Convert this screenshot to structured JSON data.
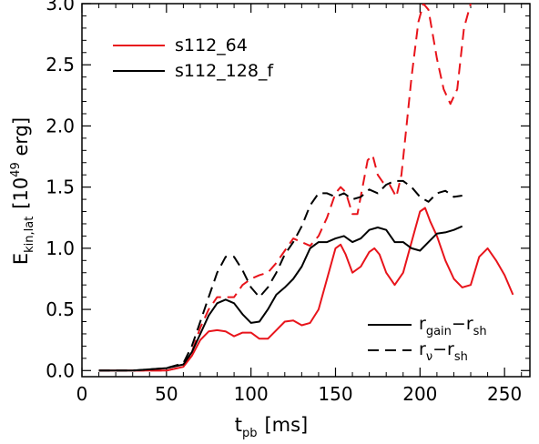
{
  "chart_data": {
    "type": "line",
    "xlabel": {
      "main": "t",
      "sub": "pb",
      "unit": "[ms]"
    },
    "ylabel": {
      "main": "E",
      "sub": "kin,lat",
      "unit_pre": "[10",
      "unit_exp": "49",
      "unit_post": " erg]"
    },
    "xlim": [
      0,
      265
    ],
    "ylim": [
      -0.05,
      3.0
    ],
    "x_ticks": [
      0,
      50,
      100,
      150,
      200,
      250
    ],
    "y_ticks": [
      0.0,
      0.5,
      1.0,
      1.5,
      2.0,
      2.5,
      3.0
    ],
    "x_tick_labels": [
      "0",
      "50",
      "100",
      "150",
      "200",
      "250"
    ],
    "y_tick_labels": [
      "0.0",
      "0.5",
      "1.0",
      "1.5",
      "2.0",
      "2.5",
      "3.0"
    ],
    "legend": {
      "placement": "top-left",
      "entries": [
        {
          "label": "s112_64",
          "color": "#e8141b"
        },
        {
          "label": "s112_128_f",
          "color": "#000000"
        }
      ]
    },
    "style_legend": {
      "placement": "bottom-right",
      "entries": [
        {
          "dash": "solid",
          "main1": "r",
          "sub1": "gain",
          "minus": "−",
          "main2": "r",
          "sub2": "sh"
        },
        {
          "dash": "dashed",
          "main1": "r",
          "sub1": "ν",
          "minus": "−",
          "main2": "r",
          "sub2": "sh"
        }
      ]
    },
    "series": [
      {
        "model": "s112_64",
        "color": "#e8141b",
        "dash": "dashed",
        "points": [
          [
            10,
            0.0
          ],
          [
            30,
            0.0
          ],
          [
            50,
            0.0
          ],
          [
            60,
            0.03
          ],
          [
            65,
            0.15
          ],
          [
            70,
            0.35
          ],
          [
            75,
            0.5
          ],
          [
            80,
            0.6
          ],
          [
            85,
            0.6
          ],
          [
            90,
            0.6
          ],
          [
            95,
            0.7
          ],
          [
            100,
            0.75
          ],
          [
            105,
            0.78
          ],
          [
            110,
            0.8
          ],
          [
            115,
            0.88
          ],
          [
            120,
            0.98
          ],
          [
            125,
            1.08
          ],
          [
            130,
            1.05
          ],
          [
            135,
            1.02
          ],
          [
            140,
            1.1
          ],
          [
            145,
            1.25
          ],
          [
            150,
            1.45
          ],
          [
            153,
            1.5
          ],
          [
            156,
            1.46
          ],
          [
            160,
            1.28
          ],
          [
            163,
            1.28
          ],
          [
            166,
            1.5
          ],
          [
            169,
            1.72
          ],
          [
            172,
            1.76
          ],
          [
            175,
            1.6
          ],
          [
            178,
            1.54
          ],
          [
            182,
            1.52
          ],
          [
            186,
            1.42
          ],
          [
            189,
            1.6
          ],
          [
            192,
            2.0
          ],
          [
            195,
            2.4
          ],
          [
            199,
            2.85
          ],
          [
            202,
            3.0
          ],
          [
            205,
            2.95
          ],
          [
            210,
            2.55
          ],
          [
            214,
            2.3
          ],
          [
            218,
            2.18
          ],
          [
            222,
            2.3
          ],
          [
            226,
            2.8
          ],
          [
            230,
            3.0
          ]
        ]
      },
      {
        "model": "s112_64",
        "color": "#e8141b",
        "dash": "solid",
        "points": [
          [
            10,
            0.0
          ],
          [
            30,
            0.0
          ],
          [
            50,
            0.0
          ],
          [
            60,
            0.03
          ],
          [
            65,
            0.12
          ],
          [
            70,
            0.25
          ],
          [
            75,
            0.32
          ],
          [
            80,
            0.33
          ],
          [
            85,
            0.32
          ],
          [
            90,
            0.28
          ],
          [
            95,
            0.31
          ],
          [
            100,
            0.31
          ],
          [
            105,
            0.26
          ],
          [
            110,
            0.26
          ],
          [
            115,
            0.33
          ],
          [
            120,
            0.4
          ],
          [
            125,
            0.41
          ],
          [
            130,
            0.37
          ],
          [
            135,
            0.39
          ],
          [
            140,
            0.5
          ],
          [
            145,
            0.75
          ],
          [
            150,
            1.0
          ],
          [
            153,
            1.03
          ],
          [
            156,
            0.95
          ],
          [
            160,
            0.8
          ],
          [
            165,
            0.85
          ],
          [
            170,
            0.97
          ],
          [
            173,
            1.0
          ],
          [
            176,
            0.95
          ],
          [
            180,
            0.8
          ],
          [
            185,
            0.7
          ],
          [
            190,
            0.8
          ],
          [
            195,
            1.05
          ],
          [
            200,
            1.3
          ],
          [
            203,
            1.33
          ],
          [
            206,
            1.22
          ],
          [
            210,
            1.1
          ],
          [
            215,
            0.9
          ],
          [
            220,
            0.75
          ],
          [
            225,
            0.68
          ],
          [
            230,
            0.7
          ],
          [
            235,
            0.93
          ],
          [
            240,
            1.0
          ],
          [
            245,
            0.9
          ],
          [
            250,
            0.78
          ],
          [
            255,
            0.62
          ]
        ]
      },
      {
        "model": "s112_128_f",
        "color": "#000000",
        "dash": "solid",
        "points": [
          [
            10,
            0.0
          ],
          [
            30,
            0.0
          ],
          [
            50,
            0.02
          ],
          [
            60,
            0.05
          ],
          [
            65,
            0.15
          ],
          [
            70,
            0.3
          ],
          [
            75,
            0.45
          ],
          [
            80,
            0.55
          ],
          [
            85,
            0.58
          ],
          [
            90,
            0.55
          ],
          [
            95,
            0.46
          ],
          [
            100,
            0.39
          ],
          [
            105,
            0.4
          ],
          [
            110,
            0.5
          ],
          [
            115,
            0.62
          ],
          [
            120,
            0.68
          ],
          [
            125,
            0.75
          ],
          [
            130,
            0.85
          ],
          [
            135,
            1.0
          ],
          [
            140,
            1.05
          ],
          [
            145,
            1.05
          ],
          [
            150,
            1.08
          ],
          [
            155,
            1.1
          ],
          [
            160,
            1.05
          ],
          [
            165,
            1.08
          ],
          [
            170,
            1.15
          ],
          [
            175,
            1.17
          ],
          [
            180,
            1.15
          ],
          [
            185,
            1.05
          ],
          [
            190,
            1.05
          ],
          [
            195,
            1.0
          ],
          [
            200,
            0.98
          ],
          [
            205,
            1.05
          ],
          [
            210,
            1.12
          ],
          [
            215,
            1.13
          ],
          [
            220,
            1.15
          ],
          [
            225,
            1.18
          ]
        ]
      },
      {
        "model": "s112_128_f",
        "color": "#000000",
        "dash": "dashed",
        "points": [
          [
            10,
            0.0
          ],
          [
            30,
            0.0
          ],
          [
            50,
            0.02
          ],
          [
            60,
            0.06
          ],
          [
            65,
            0.2
          ],
          [
            70,
            0.4
          ],
          [
            75,
            0.6
          ],
          [
            80,
            0.8
          ],
          [
            85,
            0.93
          ],
          [
            90,
            0.93
          ],
          [
            95,
            0.82
          ],
          [
            100,
            0.68
          ],
          [
            105,
            0.6
          ],
          [
            110,
            0.68
          ],
          [
            115,
            0.8
          ],
          [
            120,
            0.95
          ],
          [
            125,
            1.05
          ],
          [
            130,
            1.18
          ],
          [
            135,
            1.35
          ],
          [
            140,
            1.45
          ],
          [
            145,
            1.45
          ],
          [
            150,
            1.42
          ],
          [
            155,
            1.45
          ],
          [
            160,
            1.4
          ],
          [
            165,
            1.42
          ],
          [
            170,
            1.48
          ],
          [
            175,
            1.45
          ],
          [
            180,
            1.52
          ],
          [
            185,
            1.55
          ],
          [
            190,
            1.55
          ],
          [
            195,
            1.5
          ],
          [
            200,
            1.42
          ],
          [
            205,
            1.38
          ],
          [
            210,
            1.45
          ],
          [
            215,
            1.47
          ],
          [
            220,
            1.42
          ],
          [
            225,
            1.43
          ]
        ]
      }
    ]
  }
}
